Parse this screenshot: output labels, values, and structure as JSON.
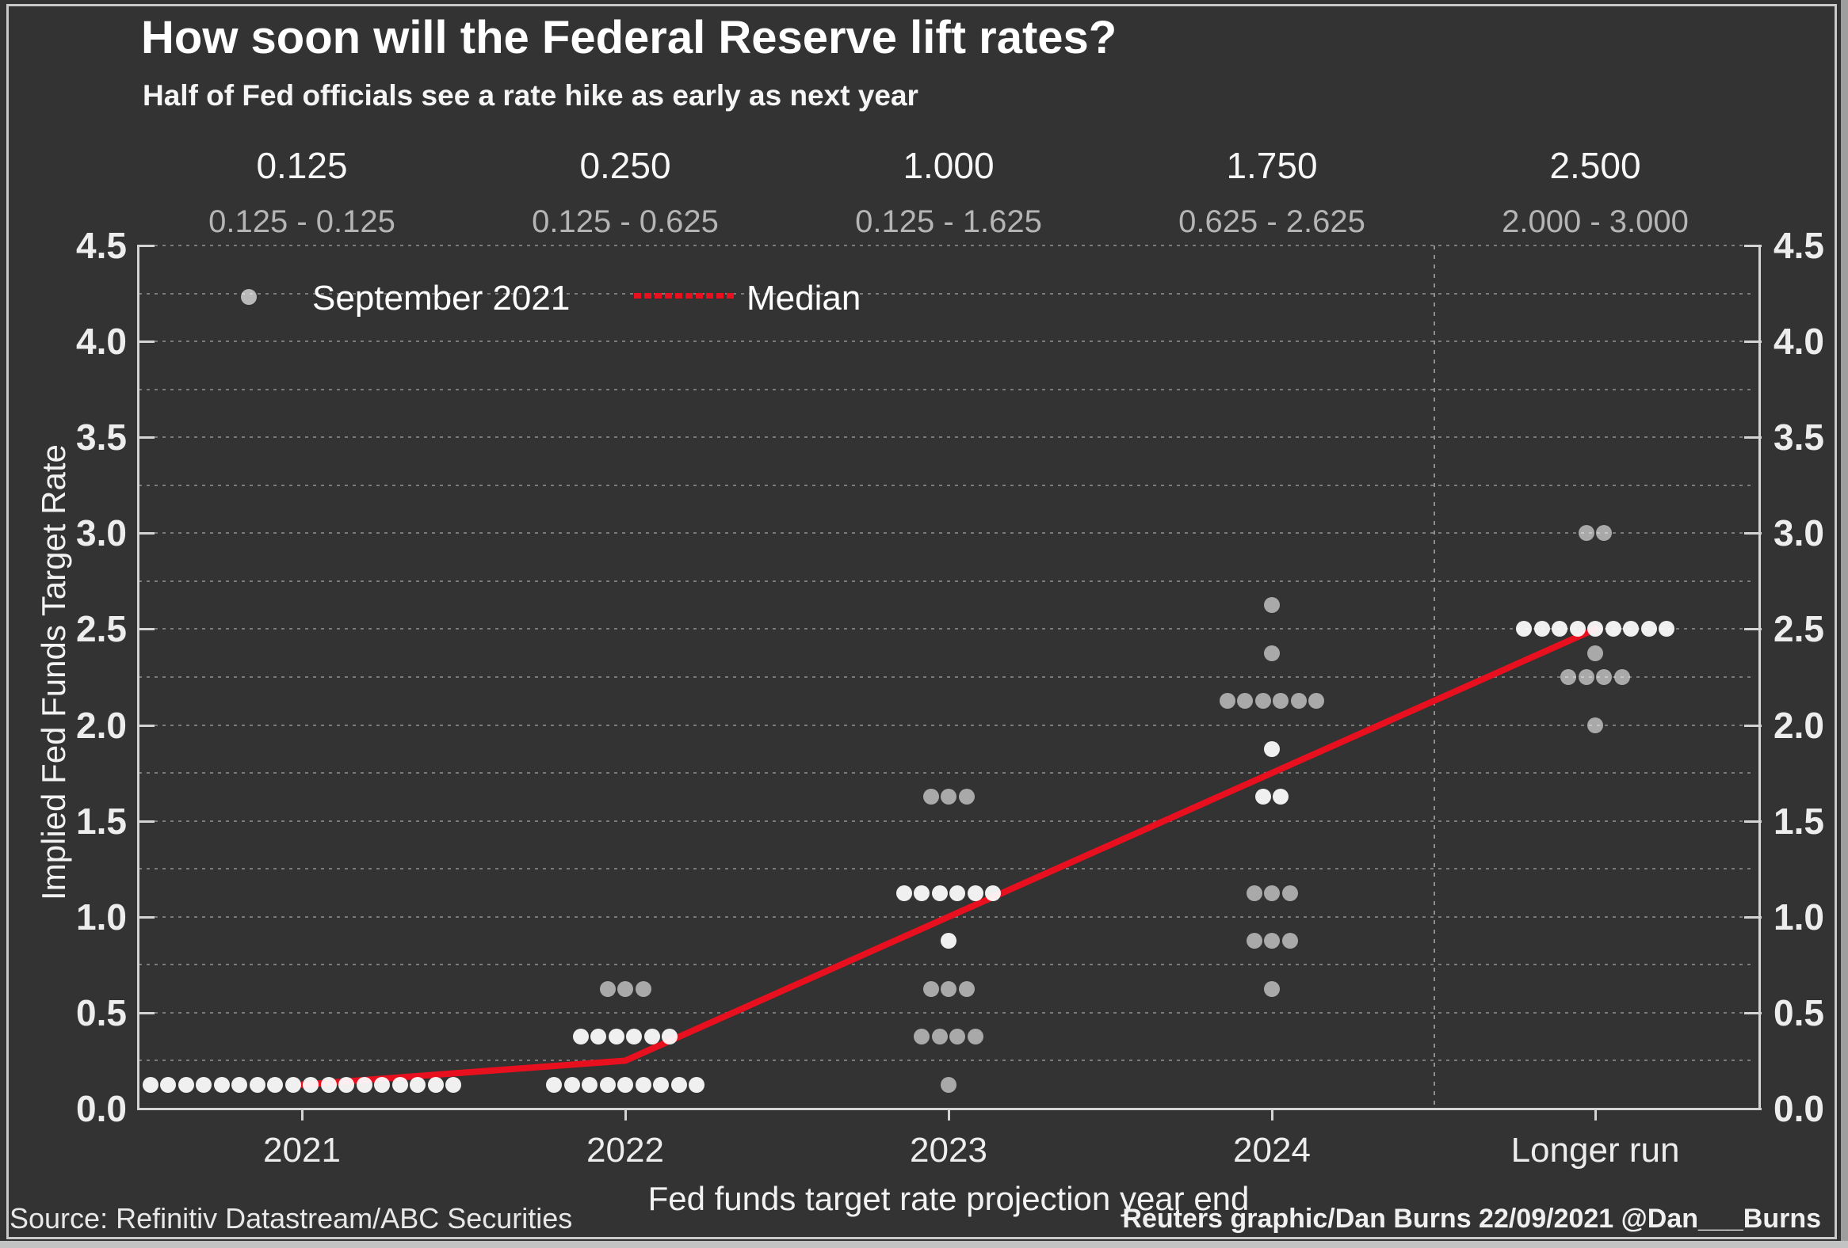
{
  "colors": {
    "background": "#333333",
    "frame": "#c9c9c9",
    "accent_red": "#e8101e",
    "dot_white": "#f5f5f5",
    "dot_gray": "#b2b2b2",
    "gridline": "#7a7a7a",
    "axis": "#d4d4d4",
    "text_bright": "#ffffff",
    "text_muted": "#b5b5b5"
  },
  "legend": {
    "series_label": "September 2021",
    "median_label": "Median"
  },
  "footer": {
    "source": "Source: Refinitiv Datastream/ABC Securities",
    "credit": "Reuters graphic/Dan Burns 22/09/2021 @Dan___Burns"
  },
  "chart_data": {
    "type": "scatter",
    "subtype": "fed-dot-plot",
    "title": "How soon will the Federal Reserve lift rates?",
    "subtitle": "Half of Fed officials see a rate hike as early as next year",
    "xlabel": "Fed funds target rate projection year end",
    "ylabel": "Implied Fed Funds Target Rate",
    "ylim": [
      0,
      4.5
    ],
    "ytick_labels": [
      "0.0",
      "0.5",
      "1.0",
      "1.5",
      "2.0",
      "2.5",
      "3.0",
      "3.5",
      "4.0",
      "4.5"
    ],
    "ytick_values": [
      0,
      0.5,
      1,
      1.5,
      2,
      2.5,
      3,
      3.5,
      4,
      4.5
    ],
    "grid_step": 0.25,
    "grid_style": "dotted",
    "dual_y_axis": true,
    "categories": [
      "2021",
      "2022",
      "2023",
      "2024",
      "Longer run"
    ],
    "median_labels": [
      "0.125",
      "0.250",
      "1.000",
      "1.750",
      "2.500"
    ],
    "range_labels": [
      "0.125 - 0.125",
      "0.125 - 0.625",
      "0.125 - 1.625",
      "0.625 - 2.625",
      "2.000 - 3.000"
    ],
    "separator_between": [
      "2024",
      "Longer run"
    ],
    "dot_groups": [
      {
        "category": "2021",
        "rate": 0.125,
        "count": 18,
        "shade": "white"
      },
      {
        "category": "2022",
        "rate": 0.125,
        "count": 9,
        "shade": "white"
      },
      {
        "category": "2022",
        "rate": 0.375,
        "count": 6,
        "shade": "white"
      },
      {
        "category": "2022",
        "rate": 0.625,
        "count": 3,
        "shade": "gray"
      },
      {
        "category": "2023",
        "rate": 0.125,
        "count": 1,
        "shade": "gray"
      },
      {
        "category": "2023",
        "rate": 0.375,
        "count": 4,
        "shade": "gray"
      },
      {
        "category": "2023",
        "rate": 0.625,
        "count": 3,
        "shade": "gray"
      },
      {
        "category": "2023",
        "rate": 0.875,
        "count": 1,
        "shade": "white"
      },
      {
        "category": "2023",
        "rate": 1.125,
        "count": 6,
        "shade": "white"
      },
      {
        "category": "2023",
        "rate": 1.625,
        "count": 3,
        "shade": "gray"
      },
      {
        "category": "2024",
        "rate": 0.625,
        "count": 1,
        "shade": "gray"
      },
      {
        "category": "2024",
        "rate": 0.875,
        "count": 3,
        "shade": "gray"
      },
      {
        "category": "2024",
        "rate": 1.125,
        "count": 3,
        "shade": "gray"
      },
      {
        "category": "2024",
        "rate": 1.625,
        "count": 2,
        "shade": "white"
      },
      {
        "category": "2024",
        "rate": 1.875,
        "count": 1,
        "shade": "white"
      },
      {
        "category": "2024",
        "rate": 2.125,
        "count": 6,
        "shade": "gray"
      },
      {
        "category": "2024",
        "rate": 2.375,
        "count": 1,
        "shade": "gray"
      },
      {
        "category": "2024",
        "rate": 2.625,
        "count": 1,
        "shade": "gray"
      },
      {
        "category": "Longer run",
        "rate": 2.0,
        "count": 1,
        "shade": "gray"
      },
      {
        "category": "Longer run",
        "rate": 2.25,
        "count": 4,
        "shade": "gray"
      },
      {
        "category": "Longer run",
        "rate": 2.375,
        "count": 1,
        "shade": "gray"
      },
      {
        "category": "Longer run",
        "rate": 2.5,
        "count": 9,
        "shade": "white"
      },
      {
        "category": "Longer run",
        "rate": 3.0,
        "count": 2,
        "shade": "gray"
      }
    ],
    "median_line": [
      {
        "category": "2021",
        "rate": 0.125
      },
      {
        "category": "2022",
        "rate": 0.25
      },
      {
        "category": "2023",
        "rate": 1.0
      },
      {
        "category": "2024",
        "rate": 1.75
      },
      {
        "category": "Longer run",
        "rate": 2.5
      }
    ],
    "legend_position": "top-left-inside"
  }
}
